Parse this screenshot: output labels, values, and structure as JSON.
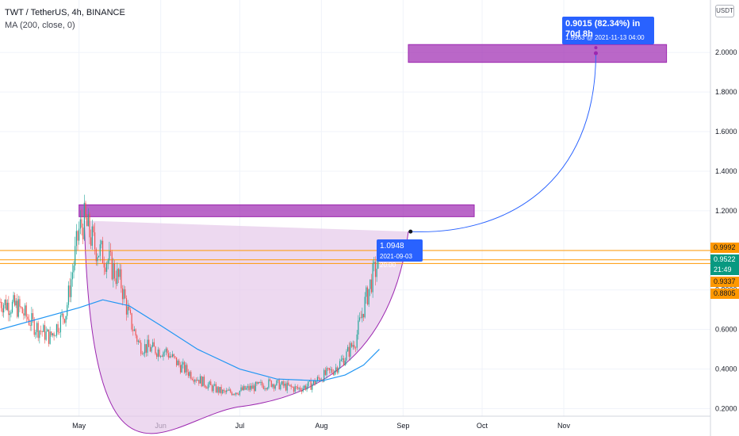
{
  "legend": {
    "title": "TWT / TetherUS, 4h, BINANCE",
    "indicator": "MA (200, close, 0)"
  },
  "currency_button": "USDT",
  "projection_tooltip": {
    "line1": "0.9015 (82.34%) in 70d 8h",
    "line2": "1.9963 @ 2021-11-13  04:00"
  },
  "point_tooltip": {
    "line1": "1.0948",
    "line2": "2021-09-03 20:00"
  },
  "price_pills": [
    {
      "label": "0.9992",
      "color": "#ff9800",
      "text_color": "#131722"
    },
    {
      "label": "0.9522",
      "color": "#089981",
      "text_color": "#ffffff"
    },
    {
      "label": "21:49",
      "color": "#089981",
      "text_color": "#ffffff"
    },
    {
      "label": "0.9337",
      "color": "#ff9800",
      "text_color": "#131722"
    },
    {
      "label": "0.8805",
      "color": "#ff9800",
      "text_color": "#131722"
    }
  ],
  "colors": {
    "up": "#26a69a",
    "down": "#ef5350",
    "ma": "#2196f3",
    "zone": "#9c27b0",
    "cup_fill": "#e6c9ea",
    "cup_line": "#9c27b0",
    "level": "#ff9800",
    "projection": "#2962ff"
  },
  "chart_data": {
    "type": "candlestick",
    "symbol": "TWT / TetherUS",
    "interval": "4h",
    "exchange": "BINANCE",
    "y_axis": {
      "ticks": [
        2.0,
        1.8,
        1.6,
        1.4,
        1.2,
        1.0,
        0.8,
        0.6,
        0.4,
        0.2
      ],
      "tick_labels": [
        "2.0000",
        "1.8000",
        "1.6000",
        "1.4000",
        "1.2000",
        "1.0000",
        "0.8000",
        "0.6000",
        "0.4000",
        "0.2000"
      ],
      "range": [
        0.17,
        2.22
      ]
    },
    "x_axis": {
      "ticks": [
        "May",
        "Jun",
        "Jul",
        "Aug",
        "Sep",
        "Oct",
        "Nov"
      ]
    },
    "close_path": [
      {
        "date": "2021-04-01",
        "close": 0.74
      },
      {
        "date": "2021-04-08",
        "close": 0.71
      },
      {
        "date": "2021-04-14",
        "close": 0.62
      },
      {
        "date": "2021-04-20",
        "close": 0.56
      },
      {
        "date": "2021-04-26",
        "close": 0.69
      },
      {
        "date": "2021-05-01",
        "close": 1.1
      },
      {
        "date": "2021-05-03",
        "close": 1.15
      },
      {
        "date": "2021-05-07",
        "close": 1.02
      },
      {
        "date": "2021-05-12",
        "close": 0.95
      },
      {
        "date": "2021-05-17",
        "close": 0.83
      },
      {
        "date": "2021-05-20",
        "close": 0.66
      },
      {
        "date": "2021-05-24",
        "close": 0.52
      },
      {
        "date": "2021-05-29",
        "close": 0.5
      },
      {
        "date": "2021-06-03",
        "close": 0.49
      },
      {
        "date": "2021-06-08",
        "close": 0.42
      },
      {
        "date": "2021-06-14",
        "close": 0.36
      },
      {
        "date": "2021-06-20",
        "close": 0.31
      },
      {
        "date": "2021-06-25",
        "close": 0.28
      },
      {
        "date": "2021-07-01",
        "close": 0.29
      },
      {
        "date": "2021-07-07",
        "close": 0.31
      },
      {
        "date": "2021-07-13",
        "close": 0.33
      },
      {
        "date": "2021-07-19",
        "close": 0.31
      },
      {
        "date": "2021-07-23",
        "close": 0.3
      },
      {
        "date": "2021-07-28",
        "close": 0.32
      },
      {
        "date": "2021-08-01",
        "close": 0.36
      },
      {
        "date": "2021-08-06",
        "close": 0.4
      },
      {
        "date": "2021-08-10",
        "close": 0.46
      },
      {
        "date": "2021-08-14",
        "close": 0.55
      },
      {
        "date": "2021-08-17",
        "close": 0.71
      },
      {
        "date": "2021-08-20",
        "close": 0.85
      },
      {
        "date": "2021-08-23",
        "close": 0.9522
      }
    ],
    "ma200": [
      {
        "date": "2021-04-01",
        "value": 0.6
      },
      {
        "date": "2021-05-01",
        "value": 0.71
      },
      {
        "date": "2021-05-10",
        "value": 0.75
      },
      {
        "date": "2021-05-20",
        "value": 0.72
      },
      {
        "date": "2021-06-01",
        "value": 0.62
      },
      {
        "date": "2021-06-15",
        "value": 0.5
      },
      {
        "date": "2021-07-01",
        "value": 0.4
      },
      {
        "date": "2021-07-15",
        "value": 0.35
      },
      {
        "date": "2021-08-01",
        "value": 0.34
      },
      {
        "date": "2021-08-10",
        "value": 0.37
      },
      {
        "date": "2021-08-17",
        "value": 0.42
      },
      {
        "date": "2021-08-23",
        "value": 0.5
      }
    ],
    "zones": [
      {
        "name": "resistance",
        "price_low": 1.17,
        "price_high": 1.23,
        "from": "2021-05-01",
        "to": "2021-09-28"
      },
      {
        "name": "target",
        "price_low": 1.95,
        "price_high": 2.04,
        "from": "2021-09-03",
        "to": "2021-12-10"
      }
    ],
    "levels": [
      0.9992,
      0.9522,
      0.9337
    ],
    "cup": {
      "left_date": "2021-05-03",
      "left_price": 1.15,
      "bottom_date": "2021-06-30",
      "bottom_price": 0.24,
      "right_date": "2021-09-03",
      "right_price": 1.0948
    },
    "projection": {
      "from_date": "2021-09-03 20:00",
      "from_price": 1.0948,
      "to_date": "2021-11-13 04:00",
      "to_price": 1.9963
    },
    "last_price": 0.9522
  }
}
